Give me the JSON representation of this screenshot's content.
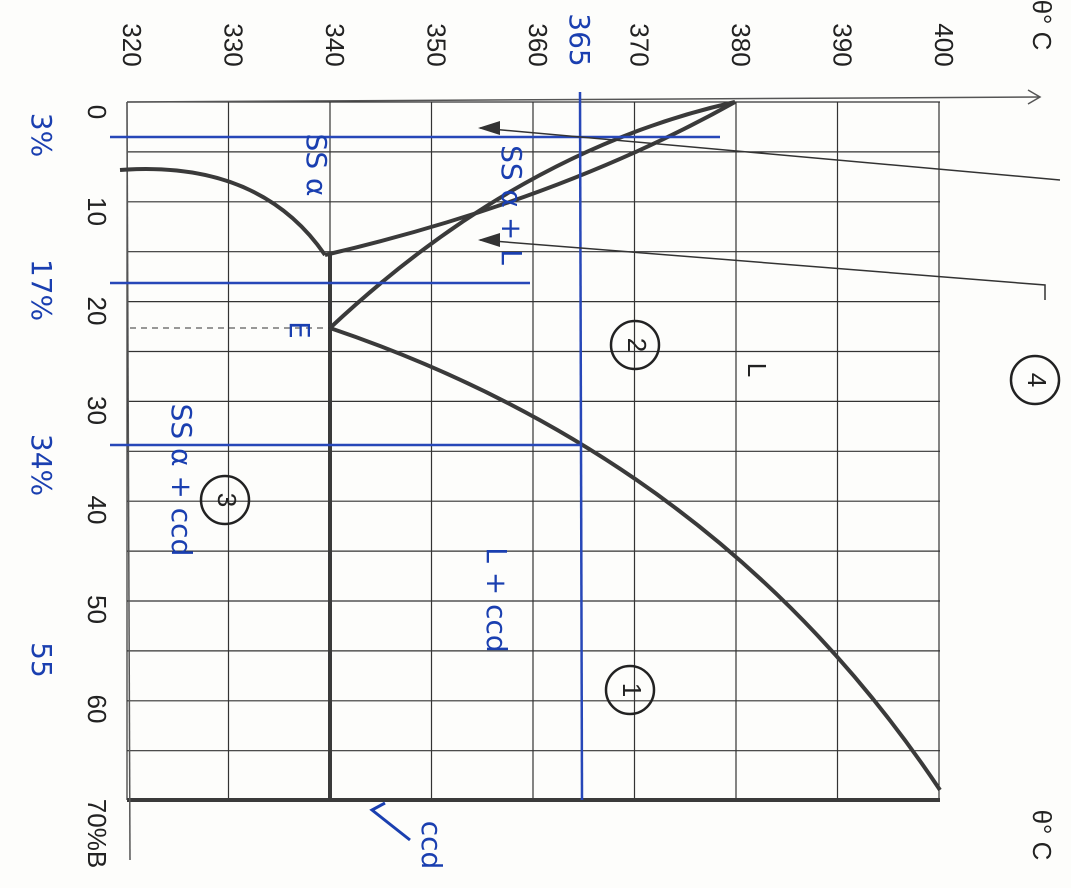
{
  "axes": {
    "temperature_unit": "θ° C",
    "temperature_unit_lower": "θ° C",
    "temperature_ticks": [
      "320",
      "330",
      "340",
      "350",
      "360",
      "370",
      "380",
      "390",
      "400"
    ],
    "composition_ticks": [
      "0",
      "10",
      "20",
      "30",
      "40",
      "50",
      "60",
      "70%B"
    ]
  },
  "annotations": {
    "selected_temperature": "365",
    "compositions": [
      "3%",
      "17%",
      "34%",
      "55"
    ],
    "regions": {
      "solid_solution": "SS α",
      "solid_liquid": "SS α + L",
      "eutectic_point": "E",
      "lower": "SS α + ccd",
      "liquid_compound": "L + ccd",
      "liquid": "L",
      "compound": "ccd"
    },
    "markers": [
      "1",
      "2",
      "3",
      "4"
    ]
  }
}
